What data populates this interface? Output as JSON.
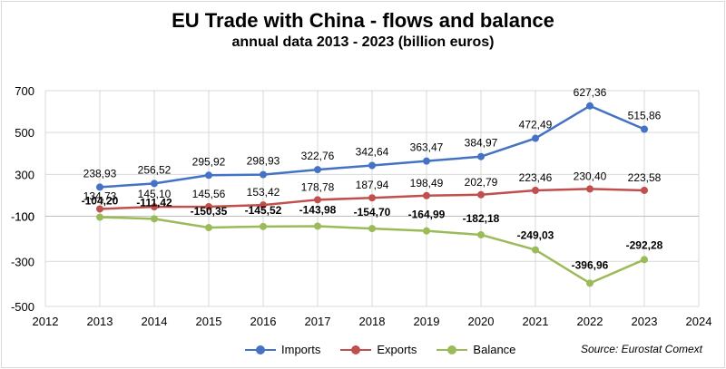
{
  "title": "EU Trade with China - flows and balance",
  "subtitle": "annual data 2013 - 2023 (billion euros)",
  "source": "Source: Eurostat Comext",
  "chart_data": {
    "type": "line",
    "x": [
      2013,
      2014,
      2015,
      2016,
      2017,
      2018,
      2019,
      2020,
      2021,
      2022,
      2023
    ],
    "xlim": [
      2012,
      2024
    ],
    "x_ticks": [
      "2012",
      "2013",
      "2014",
      "2015",
      "2016",
      "2017",
      "2018",
      "2019",
      "2020",
      "2021",
      "2022",
      "2023",
      "2024"
    ],
    "y_ticks": [
      {
        "value": 700,
        "label": "700"
      },
      {
        "value": 500,
        "label": "500"
      },
      {
        "value": 300,
        "label": "300"
      },
      {
        "value": 100,
        "label": "100"
      },
      {
        "value": -100,
        "label": "-100"
      },
      {
        "value": -300,
        "label": "-300"
      },
      {
        "value": -500,
        "label": "-500"
      }
    ],
    "grid": true,
    "legend": "bottom",
    "series": [
      {
        "name": "Imports",
        "color": "#4472c4",
        "values": [
          238.93,
          256.52,
          295.92,
          298.93,
          322.76,
          342.64,
          363.47,
          384.97,
          472.49,
          627.36,
          515.86
        ],
        "labels": [
          "238,93",
          "256,52",
          "295,92",
          "298,93",
          "322,76",
          "342,64",
          "363,47",
          "384,97",
          "472,49",
          "627,36",
          "515,86"
        ],
        "label_bold": false
      },
      {
        "name": "Exports",
        "color": "#c0504d",
        "values": [
          134.73,
          145.1,
          145.56,
          153.42,
          178.78,
          187.94,
          198.49,
          202.79,
          223.46,
          230.4,
          223.58
        ],
        "labels": [
          "134,73",
          "145,10",
          "145,56",
          "153,42",
          "178,78",
          "187,94",
          "198,49",
          "202,79",
          "223,46",
          "230,40",
          "223,58"
        ],
        "label_bold": false
      },
      {
        "name": "Balance",
        "color": "#9bbb59",
        "values": [
          -104.2,
          -111.42,
          -150.35,
          -145.52,
          -143.98,
          -154.7,
          -164.99,
          -182.18,
          -249.03,
          -396.96,
          -292.28
        ],
        "labels": [
          "-104,20",
          "-111,42",
          "-150,35",
          "-145,52",
          "-143,98",
          "-154,70",
          "-164,99",
          "-182,18",
          "-249,03",
          "-396,96",
          "-292,28"
        ],
        "label_bold": true
      }
    ]
  }
}
